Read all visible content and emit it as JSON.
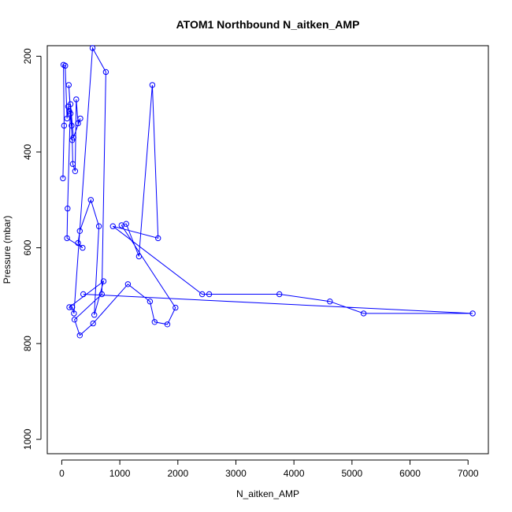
{
  "chart_data": {
    "type": "line",
    "title": "ATOM1 Northbound N_aitken_AMP",
    "xlabel": "N_aitken_AMP",
    "ylabel": "Pressure (mbar)",
    "xlim": [
      -250,
      7350
    ],
    "ylim": [
      1030,
      178
    ],
    "y_reversed": true,
    "xticks": [
      0,
      1000,
      2000,
      3000,
      4000,
      5000,
      6000,
      7000
    ],
    "yticks": [
      200,
      400,
      600,
      800,
      1000
    ],
    "grid": false,
    "legend": "none",
    "marker": "open-circle",
    "series": [
      {
        "color": "#0000ff",
        "points": [
          [
            20,
            455
          ],
          [
            40,
            345
          ],
          [
            30,
            218
          ],
          [
            60,
            220
          ],
          [
            90,
            330
          ],
          [
            110,
            305
          ],
          [
            130,
            315
          ],
          [
            150,
            320
          ],
          [
            170,
            345
          ],
          [
            120,
            260
          ],
          [
            180,
            375
          ],
          [
            190,
            425
          ],
          [
            230,
            440
          ],
          [
            250,
            290
          ],
          [
            280,
            340
          ],
          [
            320,
            330
          ],
          [
            200,
            370
          ],
          [
            150,
            300
          ],
          [
            100,
            518
          ],
          [
            90,
            580
          ],
          [
            360,
            600
          ],
          [
            280,
            590
          ],
          [
            310,
            565
          ],
          [
            500,
            500
          ],
          [
            640,
            555
          ],
          [
            560,
            740
          ],
          [
            720,
            670
          ],
          [
            130,
            724
          ],
          [
            180,
            724
          ],
          [
            210,
            737
          ],
          [
            530,
            183
          ],
          [
            760,
            233
          ],
          [
            690,
            697
          ],
          [
            220,
            750
          ],
          [
            310,
            783
          ],
          [
            540,
            758
          ],
          [
            1140,
            676
          ],
          [
            1520,
            712
          ],
          [
            1600,
            755
          ],
          [
            1820,
            760
          ],
          [
            1960,
            725
          ],
          [
            1030,
            553
          ],
          [
            1110,
            550
          ],
          [
            1330,
            618
          ],
          [
            1560,
            260
          ],
          [
            1660,
            580
          ],
          [
            880,
            555
          ],
          [
            2420,
            697
          ],
          [
            2540,
            697
          ],
          [
            3750,
            697
          ],
          [
            4620,
            712
          ],
          [
            5200,
            737
          ],
          [
            7080,
            737
          ],
          [
            370,
            697
          ]
        ]
      }
    ]
  }
}
